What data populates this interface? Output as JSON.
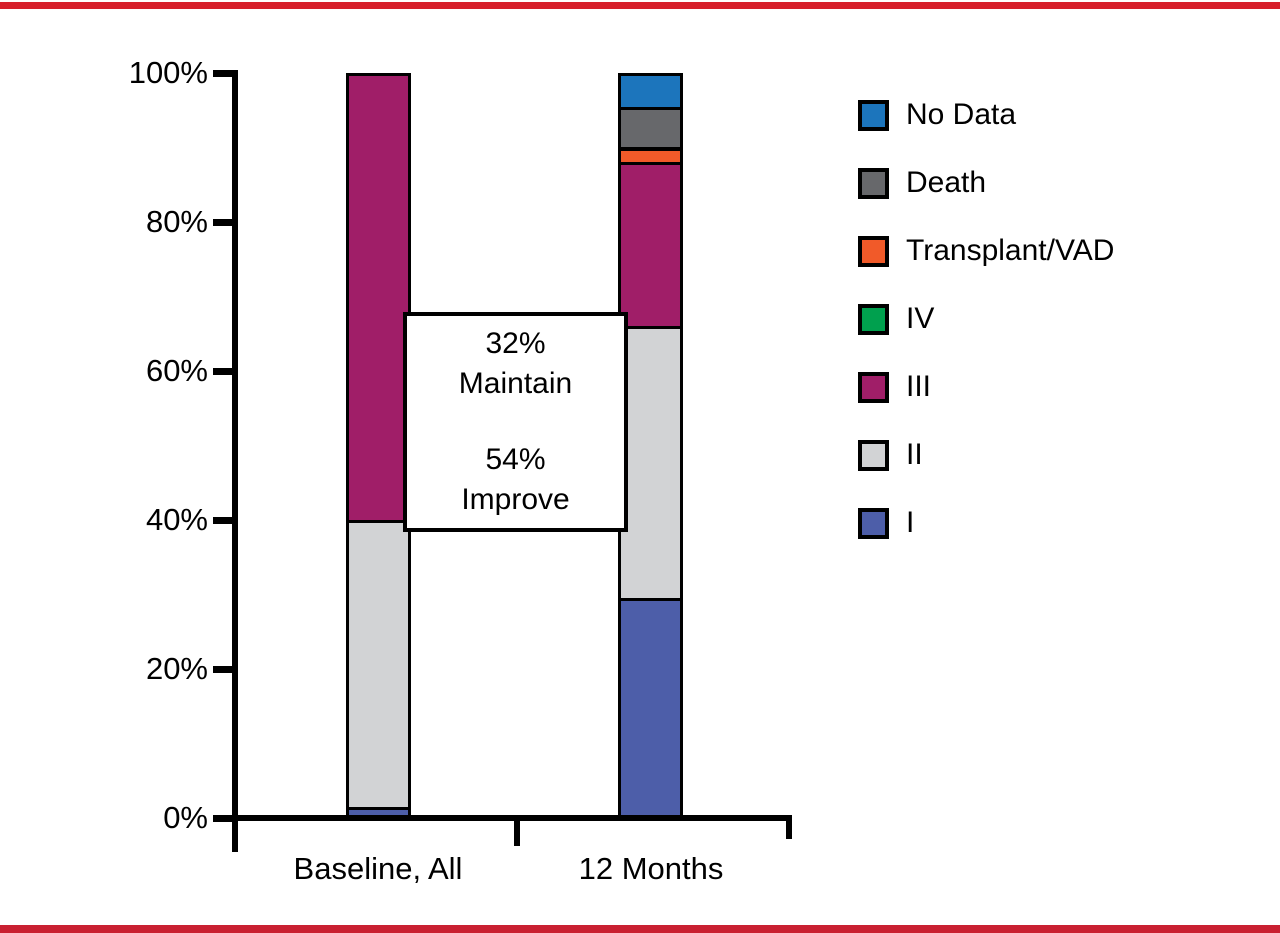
{
  "figure": {
    "background": "#ffffff",
    "top_rule_color": "#d71f2b",
    "bottom_rule_color": "#c92031"
  },
  "chart_data": {
    "type": "bar",
    "stacked": true,
    "title": "",
    "xlabel": "",
    "ylabel": "",
    "categories": [
      "Baseline, All",
      "12 Months"
    ],
    "series": [
      {
        "name": "I",
        "color": "#4d5ea9",
        "values": [
          1.5,
          29.5
        ]
      },
      {
        "name": "II",
        "color": "#d2d3d5",
        "values": [
          38.5,
          36.5
        ]
      },
      {
        "name": "III",
        "color": "#a01e68",
        "values": [
          60,
          22
        ]
      },
      {
        "name": "IV",
        "color": "#00a04e",
        "values": [
          0,
          0
        ]
      },
      {
        "name": "Transplant/VAD",
        "color": "#f15a29",
        "values": [
          0,
          2
        ]
      },
      {
        "name": "Death",
        "color": "#67686b",
        "values": [
          0,
          5.5
        ]
      },
      {
        "name": "No Data",
        "color": "#1c75bc",
        "values": [
          0,
          4.5
        ]
      }
    ],
    "ylim": [
      0,
      100
    ],
    "yticks": [
      "0%",
      "20%",
      "40%",
      "60%",
      "80%",
      "100%"
    ],
    "grid": false,
    "legend_position": "right",
    "annotation": {
      "maintain_pct": "32%",
      "maintain_label": "Maintain",
      "improve_pct": "54%",
      "improve_label": "Improve"
    }
  },
  "legend": {
    "items": [
      {
        "label": "No Data",
        "color": "#1c75bc"
      },
      {
        "label": "Death",
        "color": "#67686b"
      },
      {
        "label": "Transplant/VAD",
        "color": "#f15a29"
      },
      {
        "label": "IV",
        "color": "#00a04e"
      },
      {
        "label": "III",
        "color": "#a01e68"
      },
      {
        "label": "II",
        "color": "#d2d3d5"
      },
      {
        "label": "I",
        "color": "#4d5ea9"
      }
    ]
  }
}
